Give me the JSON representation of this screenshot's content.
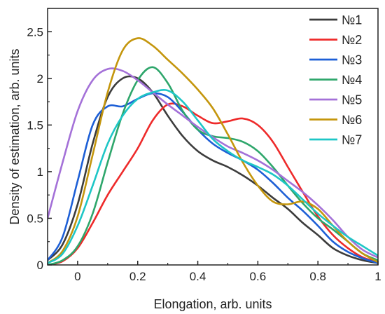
{
  "chart_data": {
    "type": "line",
    "xlabel": "Elongation, arb. units",
    "ylabel": "Density of estimation, arb. units",
    "xlim": [
      -0.1,
      1.0
    ],
    "ylim": [
      0,
      2.75
    ],
    "xticks": [
      0,
      0.2,
      0.4,
      0.6,
      0.8,
      1
    ],
    "xtick_labels": [
      "0",
      "0.2",
      "0.4",
      "0.6",
      "0.8",
      "1"
    ],
    "yticks": [
      0,
      0.5,
      1,
      1.5,
      2,
      2.5
    ],
    "ytick_labels": [
      "0",
      "0.5",
      "1",
      "1.5",
      "2",
      "2.5"
    ],
    "grid": false,
    "legend_position": "top-right",
    "series": [
      {
        "name": "№1",
        "color": "#3c3c3c",
        "x": [
          -0.1,
          -0.05,
          0,
          0.05,
          0.1,
          0.15,
          0.2,
          0.25,
          0.3,
          0.35,
          0.4,
          0.45,
          0.5,
          0.55,
          0.6,
          0.65,
          0.7,
          0.75,
          0.8,
          0.85,
          0.9,
          0.95,
          1.0
        ],
        "y": [
          0.05,
          0.22,
          0.65,
          1.3,
          1.8,
          2.0,
          2.0,
          1.85,
          1.6,
          1.38,
          1.22,
          1.12,
          1.05,
          0.96,
          0.85,
          0.72,
          0.6,
          0.45,
          0.32,
          0.18,
          0.1,
          0.05,
          0.02
        ]
      },
      {
        "name": "№2",
        "color": "#ee2a2a",
        "x": [
          -0.1,
          -0.05,
          0,
          0.05,
          0.1,
          0.15,
          0.2,
          0.25,
          0.3,
          0.35,
          0.4,
          0.45,
          0.5,
          0.55,
          0.6,
          0.65,
          0.7,
          0.75,
          0.8,
          0.85,
          0.9,
          0.95,
          1.0
        ],
        "y": [
          0.0,
          0.04,
          0.18,
          0.45,
          0.75,
          1.0,
          1.25,
          1.55,
          1.72,
          1.7,
          1.6,
          1.52,
          1.54,
          1.57,
          1.5,
          1.32,
          1.05,
          0.78,
          0.52,
          0.32,
          0.18,
          0.08,
          0.03
        ]
      },
      {
        "name": "№3",
        "color": "#1d5fd6",
        "x": [
          -0.1,
          -0.05,
          0,
          0.05,
          0.1,
          0.15,
          0.2,
          0.25,
          0.3,
          0.35,
          0.4,
          0.45,
          0.5,
          0.55,
          0.6,
          0.65,
          0.7,
          0.75,
          0.8,
          0.85,
          0.9,
          0.95,
          1.0
        ],
        "y": [
          0.05,
          0.3,
          0.9,
          1.5,
          1.7,
          1.7,
          1.78,
          1.84,
          1.8,
          1.64,
          1.45,
          1.3,
          1.2,
          1.12,
          1.02,
          0.88,
          0.72,
          0.58,
          0.42,
          0.25,
          0.14,
          0.07,
          0.02
        ]
      },
      {
        "name": "№4",
        "color": "#2ea66b",
        "x": [
          -0.1,
          -0.05,
          0,
          0.05,
          0.1,
          0.15,
          0.2,
          0.25,
          0.3,
          0.35,
          0.4,
          0.45,
          0.5,
          0.55,
          0.6,
          0.65,
          0.7,
          0.75,
          0.8,
          0.85,
          0.9,
          0.95,
          1.0
        ],
        "y": [
          0.0,
          0.05,
          0.2,
          0.55,
          1.1,
          1.62,
          1.98,
          2.12,
          1.95,
          1.65,
          1.45,
          1.38,
          1.36,
          1.32,
          1.22,
          1.05,
          0.85,
          0.66,
          0.5,
          0.38,
          0.25,
          0.12,
          0.05
        ]
      },
      {
        "name": "№5",
        "color": "#a471d8",
        "x": [
          -0.1,
          -0.05,
          0,
          0.05,
          0.1,
          0.15,
          0.2,
          0.25,
          0.3,
          0.35,
          0.4,
          0.45,
          0.5,
          0.55,
          0.6,
          0.65,
          0.7,
          0.75,
          0.8,
          0.85,
          0.9,
          0.95,
          1.0
        ],
        "y": [
          0.5,
          1.1,
          1.65,
          1.98,
          2.1,
          2.08,
          1.98,
          1.85,
          1.72,
          1.6,
          1.48,
          1.37,
          1.27,
          1.2,
          1.12,
          1.02,
          0.9,
          0.78,
          0.64,
          0.48,
          0.3,
          0.16,
          0.08
        ]
      },
      {
        "name": "№6",
        "color": "#c4960d",
        "x": [
          -0.1,
          -0.05,
          0,
          0.05,
          0.1,
          0.15,
          0.2,
          0.25,
          0.3,
          0.35,
          0.4,
          0.45,
          0.5,
          0.55,
          0.6,
          0.65,
          0.7,
          0.75,
          0.8,
          0.85,
          0.9,
          0.95,
          1.0
        ],
        "y": [
          0.02,
          0.15,
          0.52,
          1.18,
          1.85,
          2.3,
          2.43,
          2.35,
          2.2,
          2.05,
          1.88,
          1.68,
          1.4,
          1.1,
          0.85,
          0.68,
          0.65,
          0.68,
          0.6,
          0.42,
          0.25,
          0.12,
          0.03
        ]
      },
      {
        "name": "№7",
        "color": "#1ec6c6",
        "x": [
          -0.1,
          -0.05,
          0,
          0.05,
          0.1,
          0.15,
          0.2,
          0.25,
          0.3,
          0.35,
          0.4,
          0.45,
          0.5,
          0.55,
          0.6,
          0.65,
          0.7,
          0.75,
          0.8,
          0.85,
          0.9,
          0.95,
          1.0
        ],
        "y": [
          0.02,
          0.12,
          0.42,
          0.85,
          1.3,
          1.6,
          1.78,
          1.85,
          1.87,
          1.75,
          1.55,
          1.35,
          1.22,
          1.12,
          1.05,
          0.97,
          0.85,
          0.7,
          0.55,
          0.42,
          0.3,
          0.2,
          0.1
        ]
      }
    ]
  }
}
